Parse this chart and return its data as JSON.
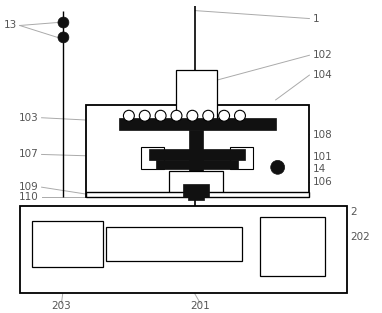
{
  "figsize": [
    3.82,
    3.13
  ],
  "dpi": 100,
  "bg_color": "#ffffff",
  "line_color": "#000000",
  "gray_color": "#aaaaaa",
  "dark_color": "#111111",
  "label_color": "#555555"
}
